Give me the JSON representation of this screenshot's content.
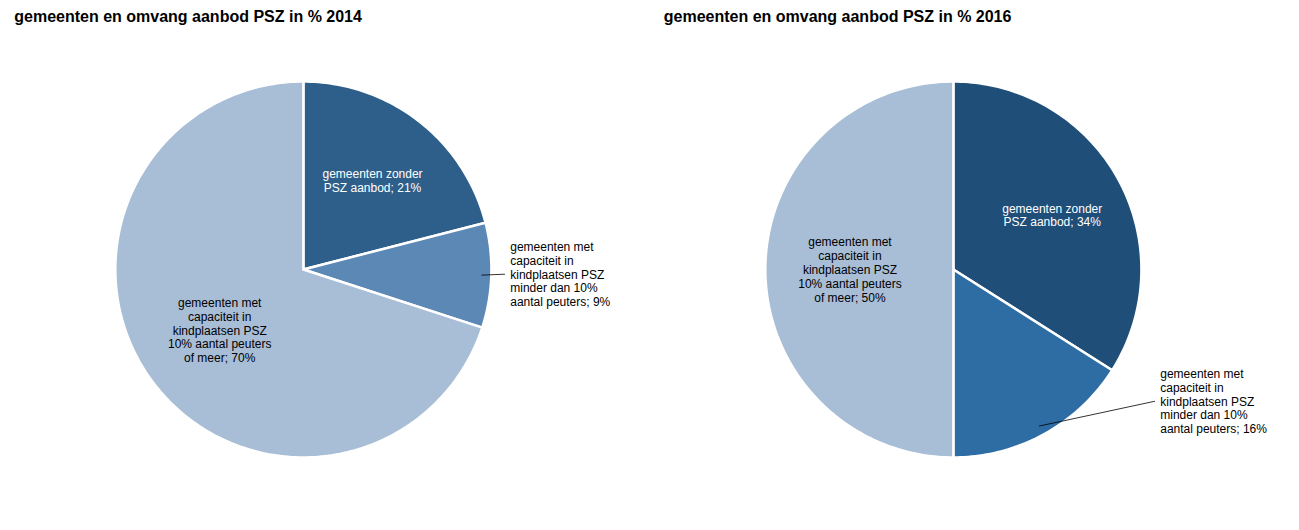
{
  "chart_data": [
    {
      "type": "pie",
      "title": "gemeenten en omvang aanbod PSZ in % 2014",
      "categories": [
        "gemeenten zonder\nPSZ aanbod; 21%",
        "gemeenten met\ncapaciteit in\nkindplaatsen PSZ\nminder dan 10%\naantal peuters; 9%",
        "gemeenten met\ncapaciteit in\nkindplaatsen PSZ\n10% aantal peuters\nof meer; 70%"
      ],
      "values": [
        21,
        9,
        70
      ],
      "colors": [
        "#2e5f8a",
        "#5b88b5",
        "#a8bdd6"
      ]
    },
    {
      "type": "pie",
      "title": "gemeenten en omvang aanbod PSZ in % 2016",
      "categories": [
        "gemeenten zonder\nPSZ aanbod; 34%",
        "gemeenten met\ncapaciteit in\nkindplaatsen PSZ\nminder dan 10%\naantal peuters; 16%",
        "gemeenten met\ncapaciteit in\nkindplaatsen PSZ\n10% aantal peuters\nof meer; 50%"
      ],
      "values": [
        34,
        16,
        50
      ],
      "colors": [
        "#1f4e79",
        "#2e6da4",
        "#a8bdd6"
      ]
    }
  ]
}
